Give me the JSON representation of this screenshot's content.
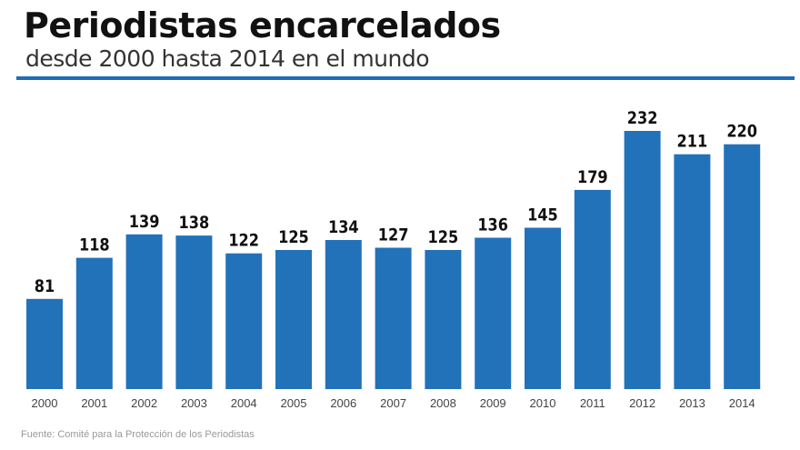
{
  "header": {
    "title": "Periodistas encarcelados",
    "subtitle": "desde 2000 hasta 2014 en el mundo"
  },
  "footer": {
    "source": "Fuente: Comité para la Protección de los Periodistas"
  },
  "colors": {
    "bar": "#2272ba",
    "rule": "#1f6db8",
    "label": "#111111",
    "tick": "#444444"
  },
  "chart_data": {
    "type": "bar",
    "title": "Periodistas encarcelados",
    "subtitle": "desde 2000 hasta 2014 en el mundo",
    "xlabel": "",
    "ylabel": "",
    "categories": [
      "2000",
      "2001",
      "2002",
      "2003",
      "2004",
      "2005",
      "2006",
      "2007",
      "2008",
      "2009",
      "2010",
      "2011",
      "2012",
      "2013",
      "2014"
    ],
    "values": [
      81,
      118,
      139,
      138,
      122,
      125,
      134,
      127,
      125,
      136,
      145,
      179,
      232,
      211,
      220
    ],
    "ylim": [
      0,
      232
    ],
    "grid": false,
    "legend": "none",
    "data_labels": true
  }
}
